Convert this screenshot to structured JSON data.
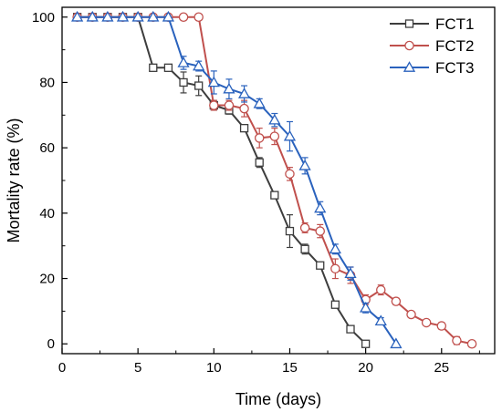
{
  "chart_data": {
    "type": "line",
    "xlabel": "Time (days)",
    "ylabel": "Mortality rate (%)",
    "xlim": [
      0,
      28.5
    ],
    "ylim": [
      -3,
      103
    ],
    "xticks": [
      0,
      5,
      10,
      15,
      20,
      25
    ],
    "yticks": [
      0,
      20,
      40,
      60,
      80,
      100
    ],
    "legend_position": "top-right",
    "grid": false,
    "series": [
      {
        "name": "FCT1",
        "color": "#3d3d3d",
        "marker": "square",
        "x": [
          1,
          2,
          3,
          4,
          5,
          6,
          7,
          8,
          9,
          10,
          11,
          12,
          13,
          14,
          15,
          16,
          17,
          18,
          19,
          20
        ],
        "y": [
          100,
          100,
          100,
          100,
          100,
          84.5,
          84.5,
          80,
          79,
          73,
          71.5,
          66,
          55.5,
          45.5,
          34.5,
          29,
          24,
          12,
          4.5,
          0
        ],
        "err": [
          0,
          0,
          0,
          0,
          0,
          0.8,
          0.8,
          3.2,
          3.0,
          1.5,
          1.2,
          1.0,
          1.5,
          1.0,
          5.0,
          1.5,
          1.0,
          1.0,
          1.0,
          0
        ]
      },
      {
        "name": "FCT2",
        "color": "#c0504d",
        "marker": "circle",
        "x": [
          1,
          2,
          3,
          4,
          5,
          6,
          7,
          8,
          9,
          10,
          11,
          12,
          13,
          14,
          15,
          16,
          17,
          18,
          19,
          20,
          21,
          22,
          23,
          24,
          25,
          26,
          27
        ],
        "y": [
          100,
          100,
          100,
          100,
          100,
          100,
          100,
          100,
          100,
          73,
          73,
          72,
          63,
          63.5,
          52,
          35.5,
          34.5,
          23,
          21,
          13.5,
          16.5,
          13,
          9,
          6.5,
          5.5,
          1,
          0
        ],
        "err": [
          0,
          0,
          0,
          0,
          0,
          0,
          0,
          0,
          0,
          1.5,
          1.5,
          2.5,
          3.0,
          2.5,
          2.0,
          1.5,
          2.0,
          3.0,
          2.5,
          1.5,
          1.5,
          1.0,
          0.8,
          0.8,
          1.0,
          1.2,
          0
        ]
      },
      {
        "name": "FCT3",
        "color": "#2a62bd",
        "marker": "triangle",
        "x": [
          1,
          2,
          3,
          4,
          5,
          6,
          7,
          8,
          9,
          10,
          11,
          12,
          13,
          14,
          15,
          16,
          17,
          18,
          19,
          20,
          21,
          22
        ],
        "y": [
          100,
          100,
          100,
          100,
          100,
          100,
          100,
          86,
          85,
          80,
          78,
          76.5,
          73.5,
          68.5,
          63.5,
          54.5,
          41.5,
          29,
          21.5,
          11,
          7,
          0
        ],
        "err": [
          0,
          0,
          0,
          0,
          0,
          0,
          0,
          2.0,
          1.5,
          3.5,
          3.0,
          2.5,
          1.5,
          2.0,
          4.5,
          2.5,
          2.0,
          1.5,
          2.0,
          1.5,
          1.0,
          0
        ]
      }
    ]
  }
}
